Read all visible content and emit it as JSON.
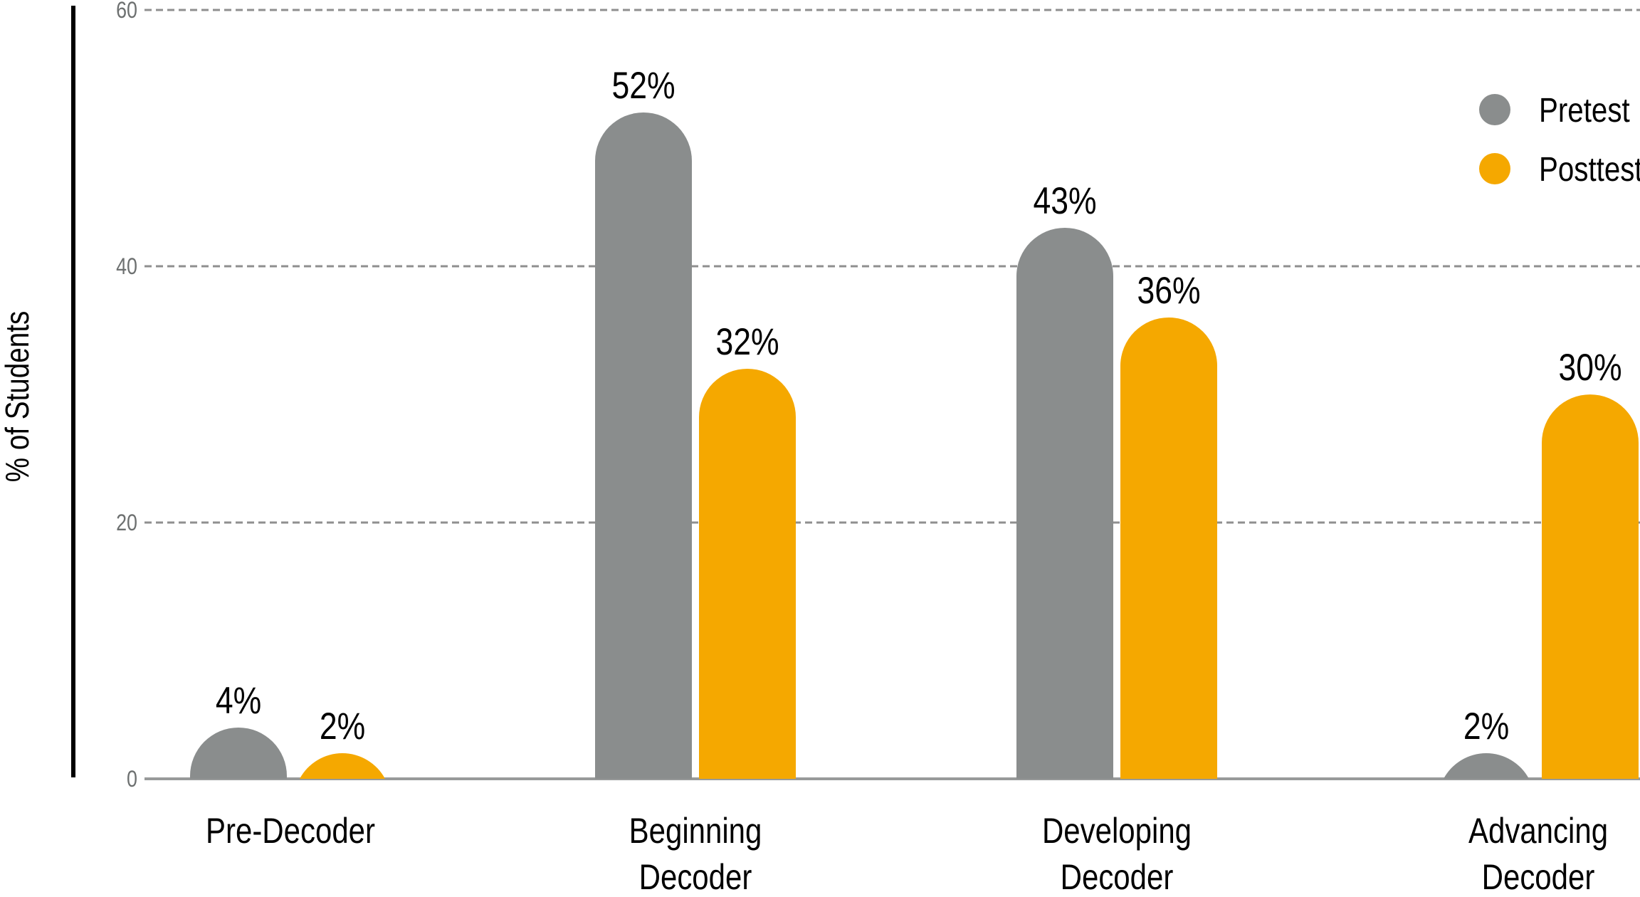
{
  "chart_data": {
    "type": "bar",
    "title": "",
    "ylabel": "% of Students",
    "ylim": [
      0,
      60
    ],
    "yticks": [
      0,
      20,
      40,
      60
    ],
    "grid": "horizontal-dashed",
    "legend_position": "top-right",
    "value_label_format": "{v}%",
    "categories": [
      "Pre-Decoder",
      "Beginning\nDecoder",
      "Developing\nDecoder",
      "Advancing\nDecoder"
    ],
    "series": [
      {
        "name": "Pretest",
        "color": "#8a8d8d",
        "values": [
          4,
          52,
          43,
          2
        ]
      },
      {
        "name": "Posttest",
        "color": "#f5a800",
        "values": [
          2,
          32,
          36,
          30
        ]
      }
    ]
  },
  "colors": {
    "background": "#ffffff",
    "axis_line": "#000000",
    "baseline": "#989a9a",
    "gridline": "#8f8f8f",
    "tick_label": "#6d7070",
    "text": "#000000"
  }
}
